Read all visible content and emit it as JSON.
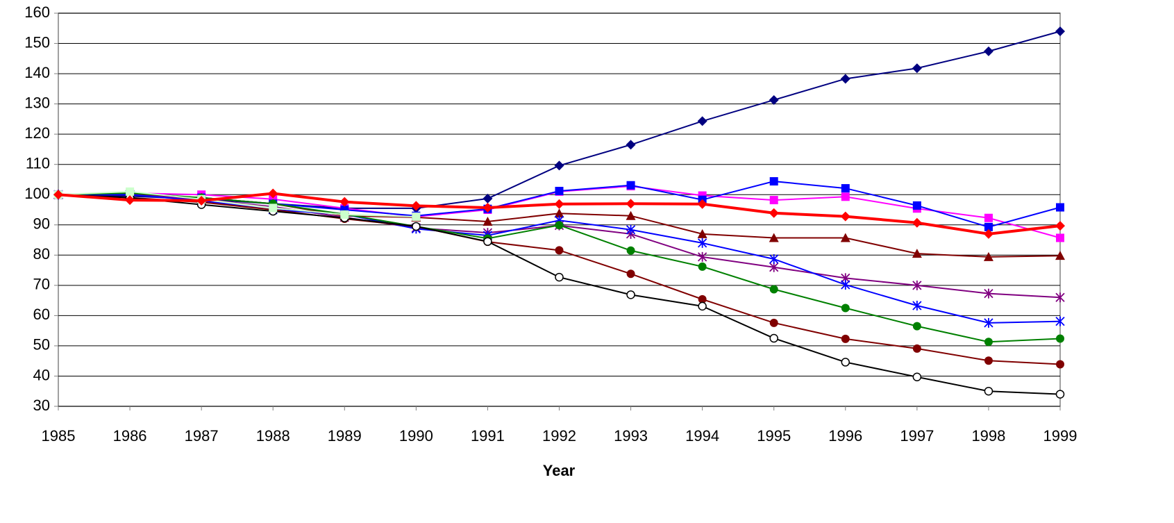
{
  "chart_data": {
    "type": "line",
    "x_label": "Year",
    "categories": [
      "1985",
      "1986",
      "1987",
      "1988",
      "1989",
      "1990",
      "1991",
      "1992",
      "1993",
      "1994",
      "1995",
      "1996",
      "1997",
      "1998",
      "1999"
    ],
    "ylim": [
      30,
      160
    ],
    "yticks": [
      30,
      40,
      50,
      60,
      70,
      80,
      90,
      100,
      110,
      120,
      130,
      140,
      150,
      160
    ],
    "grid": true,
    "series": [
      {
        "color": "#000080",
        "marker": "diamond",
        "width": 2,
        "values": [
          100,
          99.5,
          98.5,
          97,
          95.5,
          95.5,
          98.7,
          109.6,
          116.5,
          124.3,
          131.3,
          138.3,
          141.8,
          147.4,
          154
        ]
      },
      {
        "color": "#ff00ff",
        "marker": "square",
        "width": 2,
        "values": [
          100,
          100.5,
          100,
          98.5,
          95.5,
          92.7,
          95,
          101,
          102.8,
          99.7,
          98.2,
          99.3,
          95.4,
          92.3,
          85.7
        ]
      },
      {
        "color": "#0000ff",
        "marker": "square",
        "width": 2,
        "values": [
          100,
          100,
          99,
          97,
          95,
          93,
          95.3,
          101.2,
          103.1,
          98.3,
          104.4,
          102.1,
          96.4,
          89.3,
          95.8
        ]
      },
      {
        "color": "#800000",
        "marker": "triangle",
        "width": 2,
        "values": [
          100,
          100,
          99,
          97,
          93,
          92.5,
          91.1,
          93.8,
          93,
          87,
          85.7,
          85.7,
          80.5,
          79.4,
          79.8
        ]
      },
      {
        "color": "#800080",
        "marker": "asterisk",
        "width": 2,
        "values": [
          100,
          100,
          98.5,
          96,
          92.5,
          89,
          87.4,
          89.8,
          87,
          79.4,
          76,
          72.4,
          70,
          67.3,
          66
        ]
      },
      {
        "color": "#0000ff",
        "marker": "asterisk",
        "width": 2,
        "values": [
          100,
          100,
          98,
          95,
          93.5,
          88.7,
          86.5,
          91.5,
          88.4,
          84,
          78.7,
          70.2,
          63.3,
          57.6,
          58.1
        ]
      },
      {
        "color": "#008000",
        "marker": "circle",
        "width": 2,
        "values": [
          100,
          100.5,
          99,
          97,
          93.5,
          89.5,
          85.5,
          89.9,
          81.5,
          76.2,
          68.7,
          62.5,
          56.5,
          51.3,
          52.4
        ]
      },
      {
        "color": "#800000",
        "marker": "circle",
        "width": 2,
        "values": [
          100,
          99,
          97.5,
          95,
          92,
          89.5,
          84.4,
          81.6,
          73.8,
          65.4,
          57.6,
          52.3,
          49.1,
          45.1,
          43.9
        ]
      },
      {
        "color": "#000000",
        "marker": "open-circle",
        "width": 2,
        "values": [
          100,
          99,
          96.7,
          94.5,
          92.3,
          89.5,
          84.5,
          72.7,
          66.9,
          63.1,
          52.5,
          44.6,
          39.7,
          35,
          34
        ]
      },
      {
        "color": "#ccffcc",
        "marker": "square",
        "width": 2,
        "values": [
          100,
          101,
          98.5,
          95.6,
          93.4,
          92.7,
          null,
          null,
          null,
          null,
          null,
          null,
          null,
          null,
          null
        ]
      },
      {
        "color": "#ff0000",
        "marker": "diamond",
        "width": 4,
        "values": [
          100,
          98.2,
          98,
          100.4,
          97.6,
          96.3,
          95.7,
          96.9,
          97,
          96.9,
          93.9,
          92.8,
          90.7,
          87,
          89.7
        ]
      }
    ]
  }
}
